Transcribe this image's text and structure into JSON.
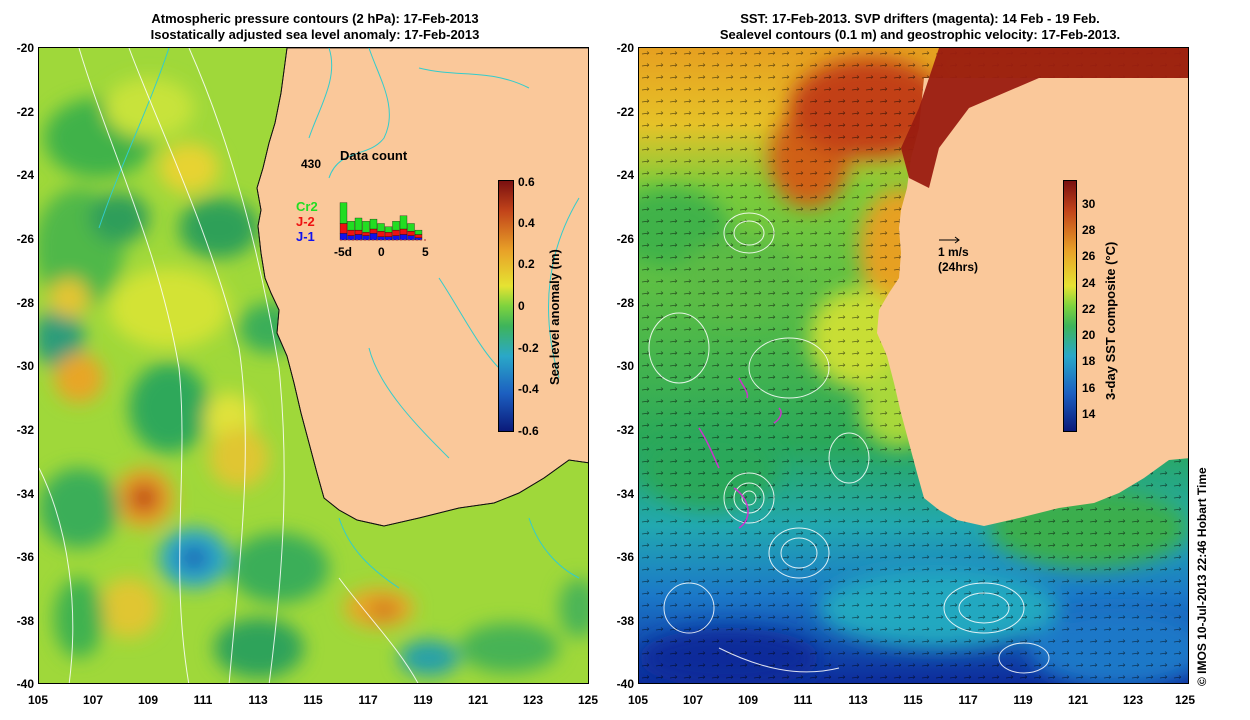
{
  "left_panel": {
    "title_line1": "Atmospheric pressure contours (2 hPa): 17-Feb-2013",
    "title_line2": "Isostatically adjusted sea level anomaly: 17-Feb-2013",
    "colorbar": {
      "label": "Sea level anomaly (m)",
      "ticks": [
        "0.6",
        "0.4",
        "0.2",
        "0",
        "-0.2",
        "-0.4",
        "-0.6"
      ]
    },
    "inset": {
      "total": "430",
      "title": "Data count",
      "legend": [
        {
          "name": "Cr2",
          "color": "#22dd22"
        },
        {
          "name": "J-2",
          "color": "#ee1111"
        },
        {
          "name": "J-1",
          "color": "#1111ee"
        }
      ],
      "xticks": [
        "-5d",
        "0",
        "5"
      ]
    }
  },
  "right_panel": {
    "title_line1": "SST: 17-Feb-2013. SVP drifters (magenta): 14 Feb - 19 Feb.",
    "title_line2": "Sealevel contours (0.1 m) and geostrophic velocity: 17-Feb-2013.",
    "colorbar": {
      "label": "3-day SST composite (°C)",
      "ticks": [
        "30",
        "28",
        "26",
        "24",
        "22",
        "20",
        "18",
        "16",
        "14"
      ]
    },
    "arrow_scale": {
      "line1": "1 m/s",
      "line2": "(24hrs)"
    }
  },
  "axes": {
    "y_ticks": [
      "-20",
      "-22",
      "-24",
      "-26",
      "-28",
      "-30",
      "-32",
      "-34",
      "-36",
      "-38",
      "-40"
    ],
    "x_ticks": [
      "105",
      "107",
      "109",
      "111",
      "113",
      "115",
      "117",
      "119",
      "121",
      "123",
      "125"
    ]
  },
  "credit": "© IMOS 10-Jul-2013 22:46 Hobart Time",
  "colors": {
    "land": "#fac89a",
    "contour_cyan": "#33cccc",
    "drifter": "#cc33cc"
  }
}
